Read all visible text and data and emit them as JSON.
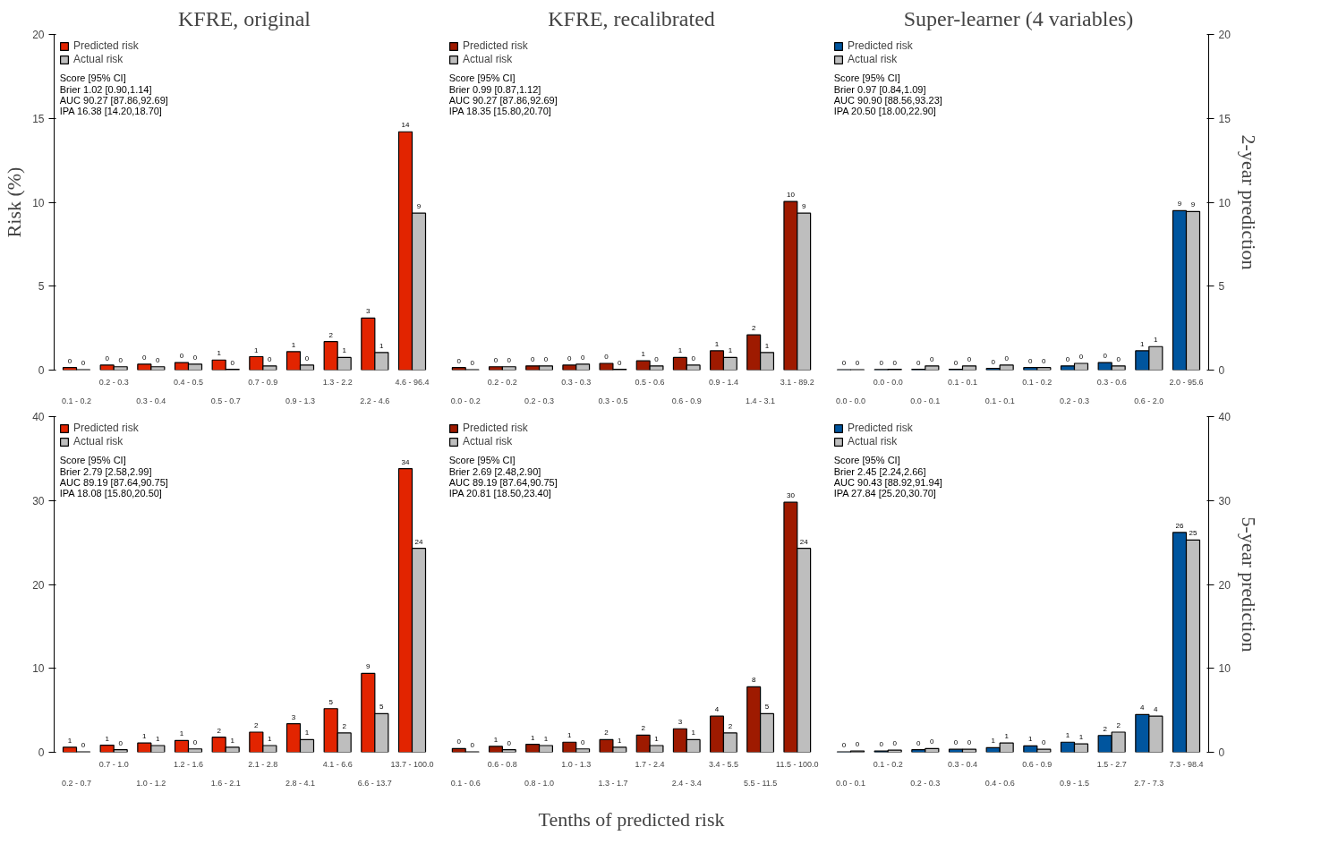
{
  "chart_data": [
    {
      "type": "bar",
      "title": "KFRE, original",
      "ylabel": "Risk (%)",
      "categories": [
        "0.1 - 0.2",
        "0.2 - 0.3",
        "0.3 - 0.4",
        "0.4 - 0.5",
        "0.5 - 0.7",
        "0.7 - 0.9",
        "0.9 - 1.3",
        "1.3 - 2.2",
        "2.2 - 4.6",
        "4.6 - 96.4"
      ],
      "ylim": [
        0,
        20
      ],
      "yticks": [
        0,
        5,
        10,
        15,
        20
      ],
      "grid": false,
      "legend": "top left",
      "annotations": [
        "Score      [95% CI]",
        "Brier   1.02    [0.90,1.14]",
        "AUC   90.27  [87.86,92.69]",
        "IPA   16.38  [14.20,18.70]"
      ],
      "series": [
        {
          "name": "Predicted risk",
          "color": "#e22400",
          "values": [
            0.15,
            0.3,
            0.35,
            0.45,
            0.6,
            0.8,
            1.1,
            1.7,
            3.1,
            14.2
          ],
          "value_labels": [
            "0",
            "0",
            "0",
            "0",
            "1",
            "1",
            "1",
            "2",
            "3",
            "14"
          ]
        },
        {
          "name": "Actual risk",
          "color": "#bebebe",
          "values": [
            0.02,
            0.2,
            0.2,
            0.35,
            0.05,
            0.25,
            0.3,
            0.75,
            1.05,
            9.35
          ],
          "value_labels": [
            "0",
            "0",
            "0",
            "0",
            "0",
            "0",
            "0",
            "1",
            "1",
            "9"
          ]
        }
      ]
    },
    {
      "type": "bar",
      "title": "KFRE, recalibrated",
      "categories": [
        "0.0 - 0.2",
        "0.2 - 0.2",
        "0.2 - 0.3",
        "0.3 - 0.3",
        "0.3 - 0.5",
        "0.5 - 0.6",
        "0.6 - 0.9",
        "0.9 - 1.4",
        "1.4 - 3.1",
        "3.1 - 89.2"
      ],
      "ylim": [
        0,
        20
      ],
      "tick_labels": "x",
      "grid": false,
      "legend": "top left",
      "annotations": [
        "Score      [95% CI]",
        "Brier   0.99    [0.87,1.12]",
        "AUC   90.27  [87.86,92.69]",
        "IPA   18.35  [15.80,20.70]"
      ],
      "series": [
        {
          "name": "Predicted risk",
          "color": "#9e1a00",
          "values": [
            0.15,
            0.2,
            0.25,
            0.3,
            0.4,
            0.55,
            0.75,
            1.15,
            2.1,
            10.05
          ],
          "value_labels": [
            "0",
            "0",
            "0",
            "0",
            "0",
            "1",
            "1",
            "1",
            "2",
            "10"
          ]
        },
        {
          "name": "Actual risk",
          "color": "#bebebe",
          "values": [
            0.02,
            0.2,
            0.25,
            0.35,
            0.05,
            0.25,
            0.3,
            0.75,
            1.05,
            9.35
          ],
          "value_labels": [
            "0",
            "0",
            "0",
            "0",
            "0",
            "0",
            "0",
            "1",
            "1",
            "9"
          ]
        }
      ]
    },
    {
      "type": "bar",
      "title": "Super-learner (4 variables)",
      "y2label": "2-year prediction",
      "categories": [
        "0.0 - 0.0",
        "0.0 - 0.0",
        "0.0 - 0.1",
        "0.1 - 0.1",
        "0.1 - 0.1",
        "0.1 - 0.2",
        "0.2 - 0.3",
        "0.3 - 0.6",
        "0.6 - 2.0",
        "2.0 - 95.6"
      ],
      "y2lim": [
        0,
        20
      ],
      "y2ticks": [
        0,
        5,
        10,
        15,
        20
      ],
      "grid": false,
      "legend": "top left",
      "annotations": [
        "Score      [95% CI]",
        "Brier   0.97    [0.84,1.09]",
        "AUC   90.90  [88.56,93.23]",
        "IPA   20.50  [18.00,22.90]"
      ],
      "series": [
        {
          "name": "Predicted risk",
          "color": "#00559e",
          "axis": "y2",
          "values": [
            0.02,
            0.03,
            0.05,
            0.05,
            0.1,
            0.15,
            0.25,
            0.45,
            1.15,
            9.5
          ],
          "value_labels": [
            "0",
            "0",
            "0",
            "0",
            "0",
            "0",
            "0",
            "0",
            "1",
            "9"
          ]
        },
        {
          "name": "Actual risk",
          "color": "#bebebe",
          "axis": "y2",
          "values": [
            0.02,
            0.05,
            0.25,
            0.25,
            0.3,
            0.15,
            0.4,
            0.25,
            1.4,
            9.45
          ],
          "value_labels": [
            "0",
            "0",
            "0",
            "0",
            "0",
            "0",
            "0",
            "0",
            "1",
            "9"
          ]
        }
      ]
    },
    {
      "type": "bar",
      "categories": [
        "0.2 - 0.7",
        "0.7 - 1.0",
        "1.0 - 1.2",
        "1.2 - 1.6",
        "1.6 - 2.1",
        "2.1 - 2.8",
        "2.8 - 4.1",
        "4.1 - 6.6",
        "6.6 - 13.7",
        "13.7 - 100.0"
      ],
      "ylim": [
        0,
        40
      ],
      "yticks": [
        0,
        10,
        20,
        30,
        40
      ],
      "grid": false,
      "legend": "top left",
      "annotations": [
        "Score      [95% CI]",
        "Brier   2.79    [2.58,2.99]",
        "AUC   89.19  [87.64,90.75]",
        "IPA   18.08  [15.80,20.50]"
      ],
      "series": [
        {
          "name": "Predicted risk",
          "color": "#e22400",
          "values": [
            0.6,
            0.85,
            1.1,
            1.4,
            1.8,
            2.4,
            3.4,
            5.2,
            9.4,
            33.8
          ],
          "value_labels": [
            "1",
            "1",
            "1",
            "1",
            "2",
            "2",
            "3",
            "5",
            "9",
            "34"
          ]
        },
        {
          "name": "Actual risk",
          "color": "#bebebe",
          "values": [
            0.05,
            0.3,
            0.8,
            0.4,
            0.6,
            0.8,
            1.5,
            2.3,
            4.6,
            24.3
          ],
          "value_labels": [
            "0",
            "0",
            "1",
            "0",
            "1",
            "1",
            "1",
            "2",
            "5",
            "24"
          ]
        }
      ]
    },
    {
      "type": "bar",
      "xlabel": "Tenths of predicted risk",
      "categories": [
        "0.1 - 0.6",
        "0.6 - 0.8",
        "0.8 - 1.0",
        "1.0 - 1.3",
        "1.3 - 1.7",
        "1.7 - 2.4",
        "2.4 - 3.4",
        "3.4 - 5.5",
        "5.5 - 11.5",
        "11.5 - 100.0"
      ],
      "ylim": [
        0,
        40
      ],
      "tick_labels": "x",
      "grid": false,
      "legend": "top left",
      "annotations": [
        "Score      [95% CI]",
        "Brier   2.69    [2.48,2.90]",
        "AUC   89.19  [87.64,90.75]",
        "IPA   20.81  [18.50,23.40]"
      ],
      "series": [
        {
          "name": "Predicted risk",
          "color": "#9e1a00",
          "values": [
            0.45,
            0.7,
            0.95,
            1.2,
            1.5,
            2.05,
            2.8,
            4.3,
            7.8,
            29.8
          ],
          "value_labels": [
            "0",
            "1",
            "1",
            "1",
            "2",
            "2",
            "3",
            "4",
            "8",
            "30"
          ]
        },
        {
          "name": "Actual risk",
          "color": "#bebebe",
          "values": [
            0.05,
            0.3,
            0.8,
            0.4,
            0.6,
            0.8,
            1.5,
            2.3,
            4.6,
            24.3
          ],
          "value_labels": [
            "0",
            "0",
            "1",
            "0",
            "1",
            "1",
            "1",
            "2",
            "5",
            "24"
          ]
        }
      ]
    },
    {
      "type": "bar",
      "y2label": "5-year prediction",
      "categories": [
        "0.0 - 0.1",
        "0.1 - 0.2",
        "0.2 - 0.3",
        "0.3 - 0.4",
        "0.4 - 0.6",
        "0.6 - 0.9",
        "0.9 - 1.5",
        "1.5 - 2.7",
        "2.7 - 7.3",
        "7.3 - 98.4"
      ],
      "y2lim": [
        0,
        40
      ],
      "y2ticks": [
        0,
        10,
        20,
        30,
        40
      ],
      "grid": false,
      "legend": "top left",
      "annotations": [
        "Score      [95% CI]",
        "Brier   2.45    [2.24,2.66]",
        "AUC   90.43  [88.92,91.94]",
        "IPA   27.84  [25.20,30.70]"
      ],
      "series": [
        {
          "name": "Predicted risk",
          "color": "#00559e",
          "axis": "y2",
          "values": [
            0.05,
            0.15,
            0.3,
            0.35,
            0.55,
            0.75,
            1.2,
            2.0,
            4.5,
            26.2
          ],
          "value_labels": [
            "0",
            "0",
            "0",
            "0",
            "1",
            "1",
            "1",
            "2",
            "4",
            "26"
          ]
        },
        {
          "name": "Actual risk",
          "color": "#bebebe",
          "axis": "y2",
          "values": [
            0.15,
            0.25,
            0.45,
            0.35,
            1.1,
            0.35,
            1.0,
            2.4,
            4.3,
            25.3
          ],
          "value_labels": [
            "0",
            "0",
            "0",
            "0",
            "1",
            "0",
            "1",
            "2",
            "4",
            "25"
          ]
        }
      ]
    }
  ]
}
